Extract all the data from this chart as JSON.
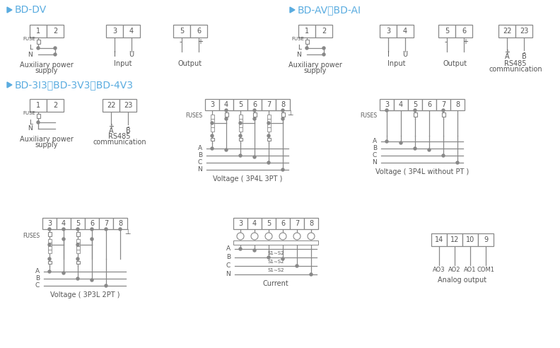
{
  "bg_color": "#ffffff",
  "line_color": "#888888",
  "blue_color": "#5aace0",
  "text_color": "#555555",
  "section1_title": "> BD-DV",
  "section2_title": "> BD-AV、BD-AI",
  "section3_title": "> BD-3I3、BD-3V3、BD-4V3",
  "figsize": [
    7.92,
    4.92
  ],
  "dpi": 100
}
